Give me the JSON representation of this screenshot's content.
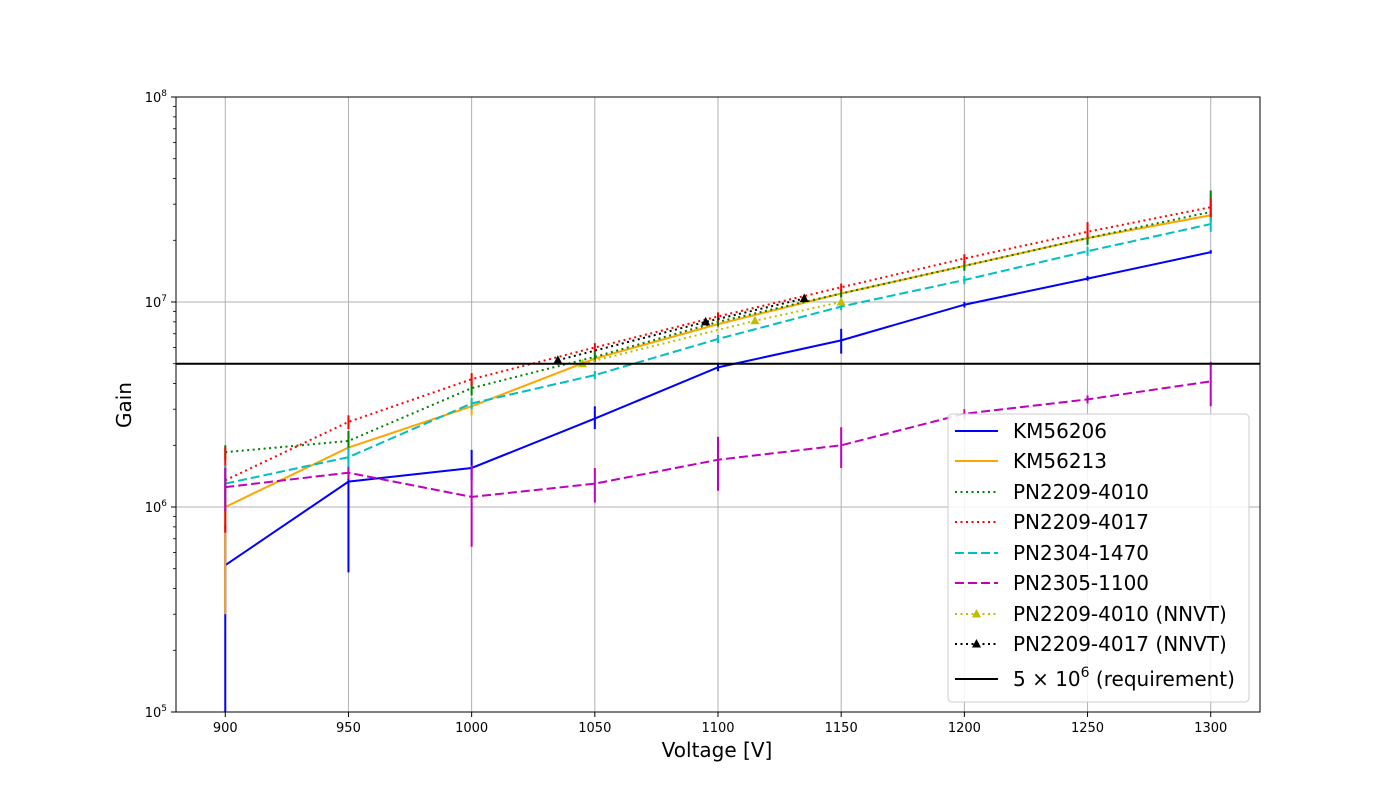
{
  "chart_data": {
    "type": "line",
    "title": "",
    "xlabel": "Voltage [V]",
    "ylabel": "Gain",
    "y_scale": "log",
    "xlim": [
      880,
      1320
    ],
    "ylim": [
      100000,
      100000000
    ],
    "grid": true,
    "legend_position": "lower-right",
    "x_ticks": [
      900,
      950,
      1000,
      1050,
      1100,
      1150,
      1200,
      1250,
      1300
    ],
    "x_tick_labels": [
      "900",
      "950",
      "1000",
      "1050",
      "1100",
      "1150",
      "1200",
      "1250",
      "1300"
    ],
    "y_ticks": [
      100000,
      1000000,
      10000000,
      100000000
    ],
    "y_tick_labels": [
      {
        "base": "10",
        "exp": "5"
      },
      {
        "base": "10",
        "exp": "6"
      },
      {
        "base": "10",
        "exp": "7"
      },
      {
        "base": "10",
        "exp": "8"
      }
    ],
    "series": [
      {
        "name": "KM56206",
        "color": "#0000ff",
        "style": "solid",
        "marker": "none",
        "x": [
          900,
          950,
          1000,
          1050,
          1100,
          1150,
          1200,
          1250,
          1300
        ],
        "y": [
          520000,
          1330000,
          1550000,
          2700000,
          4800000,
          6500000,
          9700000,
          13000000,
          17500000
        ],
        "err_low": [
          500000,
          850000,
          200000,
          300000,
          200000,
          900000,
          300000,
          300000,
          300000
        ],
        "err_high": [
          300000,
          200000,
          350000,
          400000,
          250000,
          900000,
          300000,
          400000,
          400000
        ]
      },
      {
        "name": "KM56213",
        "color": "#ffa500",
        "style": "solid",
        "marker": "none",
        "x": [
          900,
          950,
          1000,
          1050,
          1100,
          1150,
          1200,
          1250,
          1300
        ],
        "y": [
          1000000,
          1950000,
          3100000,
          5300000,
          7800000,
          11000000,
          15000000,
          20500000,
          26500000
        ],
        "err_low": [
          700000,
          300000,
          300000,
          200000,
          300000,
          400000,
          500000,
          700000,
          1000000
        ],
        "err_high": [
          300000,
          300000,
          300000,
          200000,
          300000,
          400000,
          500000,
          700000,
          1000000
        ]
      },
      {
        "name": "PN2209-4010",
        "color": "#008000",
        "style": "dotted",
        "marker": "none",
        "x": [
          900,
          950,
          1000,
          1050,
          1100,
          1150,
          1200,
          1250,
          1300
        ],
        "y": [
          1850000,
          2100000,
          3800000,
          5400000,
          8000000,
          11000000,
          15000000,
          20500000,
          27500000
        ],
        "err_low": [
          150000,
          200000,
          300000,
          300000,
          400000,
          500000,
          800000,
          1500000,
          2500000
        ],
        "err_high": [
          150000,
          250000,
          300000,
          300000,
          400000,
          500000,
          800000,
          1500000,
          7500000
        ]
      },
      {
        "name": "PN2209-4017",
        "color": "#ff0000",
        "style": "dotted",
        "marker": "none",
        "x": [
          900,
          950,
          1000,
          1050,
          1100,
          1150,
          1200,
          1250,
          1300
        ],
        "y": [
          1350000,
          2600000,
          4200000,
          6000000,
          8500000,
          11800000,
          16300000,
          22000000,
          29000000
        ],
        "err_low": [
          600000,
          200000,
          300000,
          300000,
          400000,
          500000,
          800000,
          1500000,
          3000000
        ],
        "err_high": [
          600000,
          200000,
          300000,
          300000,
          400000,
          500000,
          800000,
          2500000,
          3000000
        ]
      },
      {
        "name": "PN2304-1470",
        "color": "#00bfbf",
        "style": "dashed",
        "marker": "none",
        "x": [
          900,
          950,
          1000,
          1050,
          1100,
          1150,
          1200,
          1250,
          1300
        ],
        "y": [
          1300000,
          1750000,
          3200000,
          4400000,
          6600000,
          9500000,
          12800000,
          17700000,
          24000000
        ],
        "err_low": [
          300000,
          200000,
          200000,
          200000,
          300000,
          400000,
          600000,
          900000,
          2000000
        ],
        "err_high": [
          300000,
          200000,
          200000,
          200000,
          300000,
          400000,
          600000,
          900000,
          2000000
        ]
      },
      {
        "name": "PN2305-1100",
        "color": "#bf00bf",
        "style": "dashed",
        "marker": "none",
        "x": [
          900,
          950,
          1000,
          1050,
          1100,
          1150,
          1200,
          1250,
          1300
        ],
        "y": [
          1250000,
          1470000,
          1120000,
          1300000,
          1700000,
          2000000,
          2850000,
          3350000,
          4100000
        ],
        "err_low": [
          300000,
          100000,
          480000,
          250000,
          500000,
          450000,
          150000,
          150000,
          1000000
        ],
        "err_high": [
          300000,
          100000,
          480000,
          250000,
          500000,
          450000,
          150000,
          150000,
          1000000
        ]
      },
      {
        "name": "PN2209-4010 (NNVT)",
        "color": "#bfbf00",
        "style": "dotted",
        "marker": "triangle",
        "x": [
          1045,
          1115,
          1150
        ],
        "y": [
          5000000,
          8100000,
          10000000
        ]
      },
      {
        "name": "PN2209-4017 (NNVT)",
        "color": "#000000",
        "style": "dotted",
        "marker": "triangle",
        "x": [
          1035,
          1095,
          1135
        ],
        "y": [
          5200000,
          8000000,
          10400000
        ]
      },
      {
        "name": "5×10⁶ (requirement)",
        "color": "#000000",
        "style": "solid",
        "marker": "none",
        "type": "hline",
        "y": 5000000
      }
    ],
    "legend_entries": [
      {
        "label": "KM56206",
        "math": false
      },
      {
        "label": "KM56213",
        "math": false
      },
      {
        "label": "PN2209-4010",
        "math": false
      },
      {
        "label": "PN2209-4017",
        "math": false
      },
      {
        "label": "PN2304-1470",
        "math": false
      },
      {
        "label": "PN2305-1100",
        "math": false
      },
      {
        "label": "PN2209-4010 (NNVT)",
        "math": false
      },
      {
        "label": "PN2209-4017 (NNVT)",
        "math": false
      },
      {
        "label_prefix": "5 × 10",
        "label_exp": "6",
        "label_suffix": " (requirement)",
        "math": true
      }
    ]
  }
}
